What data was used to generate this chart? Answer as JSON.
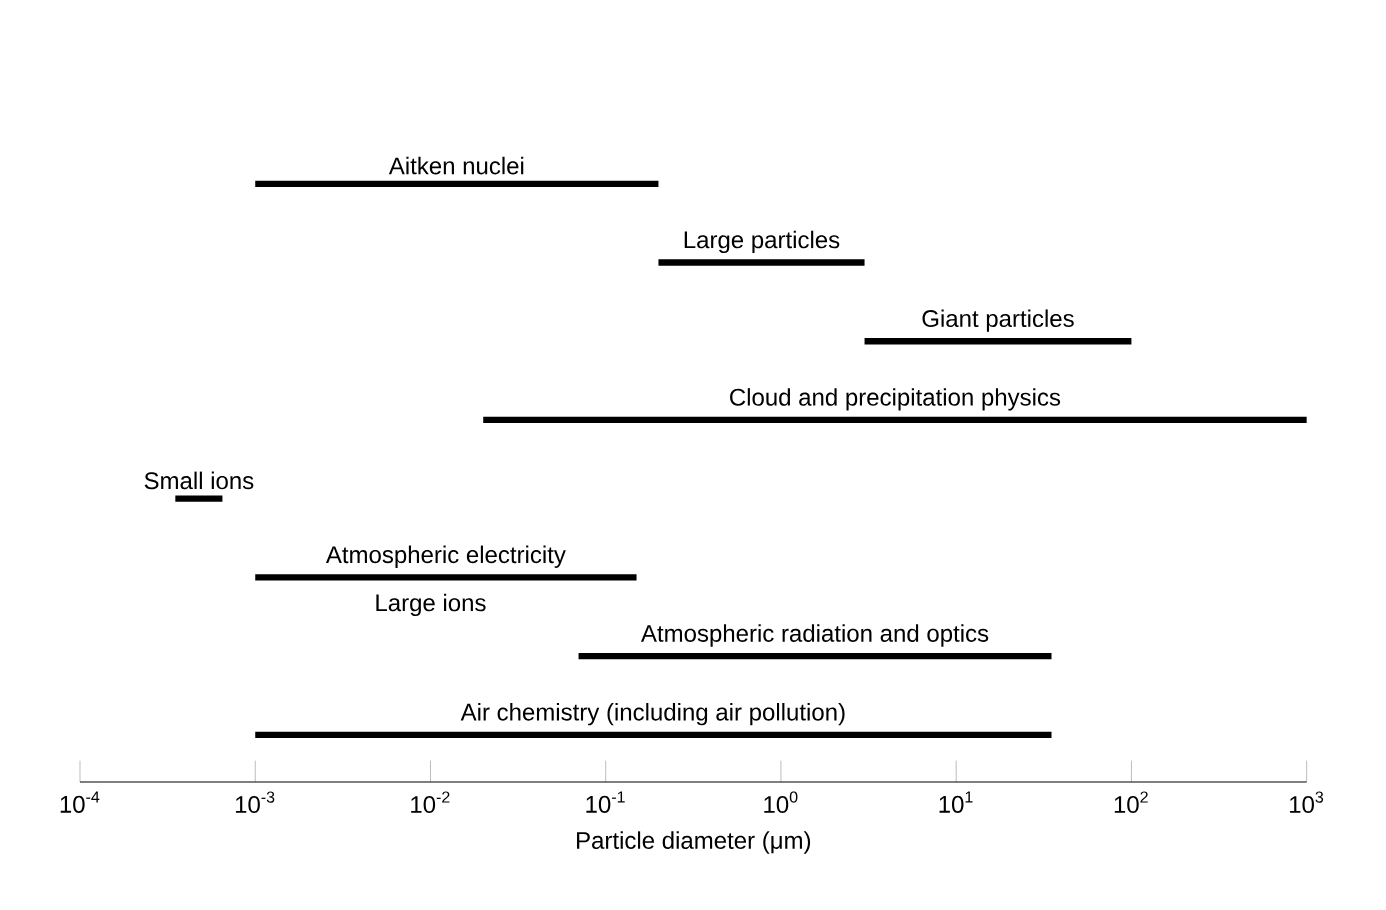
{
  "chart_data": {
    "type": "bar",
    "orientation": "horizontal",
    "log": "x",
    "color": "#000000",
    "categories": [
      "Aitken nuclei",
      "Large particles",
      "Giant particles",
      "Cloud and precipitation physics",
      "Small ions",
      "Atmospheric electricity",
      "Atmospheric radiation and optics",
      "Air chemistry (including air pollution)"
    ],
    "base": [
      0.001,
      0.2,
      3,
      0.02,
      0.00035,
      0.001,
      0.07,
      0.001
    ],
    "values": [
      0.199,
      2.8,
      97,
      999.98,
      0.0003,
      0.149,
      34.93,
      34.999
    ],
    "annotations": [
      "Large ions"
    ],
    "xlabel": "Particle diameter (μm)",
    "xlim": [
      0.0001,
      1000
    ],
    "xticks": [
      {
        "value": 0.0001,
        "label": "10$^{-4}$"
      },
      {
        "value": 0.001,
        "label": "10$^{-3}$"
      },
      {
        "value": 0.01,
        "label": "10$^{-2}$"
      },
      {
        "value": 0.1,
        "label": "10$^{-1}$"
      },
      {
        "value": 1,
        "label": "10$^{0}$"
      },
      {
        "value": 10,
        "label": "10$^{1}$"
      },
      {
        "value": 100,
        "label": "10$^{2}$"
      },
      {
        "value": 1000,
        "label": "10$^{3}$"
      }
    ]
  }
}
